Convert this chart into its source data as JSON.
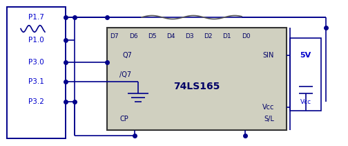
{
  "bg_color": "#ffffff",
  "line_color": "#00008B",
  "text_color": "#0000CC",
  "chip_fill": "#d0d0c0",
  "title": "74LS165",
  "d_pins": [
    "D7",
    "D6",
    "D5",
    "D4",
    "D3",
    "D2",
    "D1",
    "D0"
  ],
  "mcu_pins": [
    [
      "P1.7",
      0.82
    ],
    [
      "P1.0",
      0.62
    ],
    [
      "P3.0",
      0.42
    ],
    [
      "P3.1",
      0.26
    ],
    [
      "P3.2",
      0.12
    ]
  ],
  "voltage": "5V",
  "chip_left_pins": [
    [
      "Q7",
      0.52
    ],
    [
      "/Q7",
      0.35
    ],
    [
      "CP",
      0.08
    ]
  ],
  "chip_right_pins": [
    [
      "SIN",
      0.52
    ],
    [
      "Vcc",
      0.18
    ],
    [
      "S/L",
      0.08
    ]
  ]
}
